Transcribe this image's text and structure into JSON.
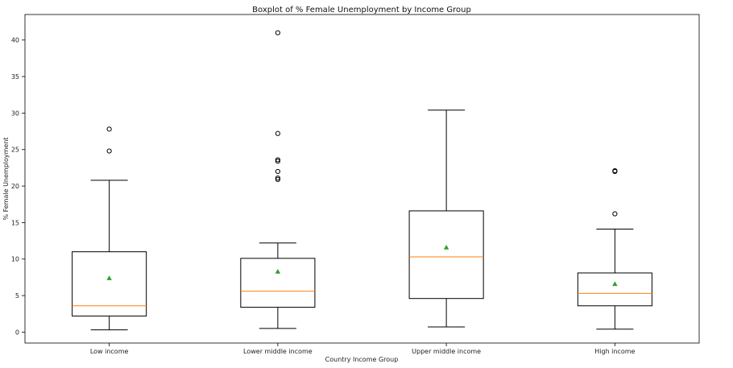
{
  "chart_data": {
    "type": "box",
    "title": "Boxplot of % Female Unemployment by Income  Group",
    "xlabel": "Country Income Group",
    "ylabel": "% Female Unemployment",
    "ylim": [
      -1.5,
      43.5
    ],
    "yticks": [
      0,
      5,
      10,
      15,
      20,
      25,
      30,
      35,
      40
    ],
    "grid": false,
    "categories": [
      "Low income",
      "Lower middle income",
      "Upper middle income",
      "High income"
    ],
    "boxes": [
      {
        "category": "Low income",
        "whisker_low": 0.3,
        "q1": 2.2,
        "median": 3.6,
        "q3": 11.0,
        "whisker_high": 20.8,
        "mean": 7.4,
        "outliers": [
          24.8,
          27.8
        ]
      },
      {
        "category": "Lower middle income",
        "whisker_low": 0.5,
        "q1": 3.4,
        "median": 5.6,
        "q3": 10.1,
        "whisker_high": 12.2,
        "mean": 8.3,
        "outliers": [
          20.9,
          21.1,
          22.0,
          23.4,
          23.6,
          27.2,
          41.0
        ]
      },
      {
        "category": "Upper middle income",
        "whisker_low": 0.7,
        "q1": 4.6,
        "median": 10.3,
        "q3": 16.6,
        "whisker_high": 30.4,
        "mean": 11.6,
        "outliers": []
      },
      {
        "category": "High income",
        "whisker_low": 0.4,
        "q1": 3.6,
        "median": 5.3,
        "q3": 8.1,
        "whisker_high": 14.1,
        "mean": 6.6,
        "outliers": [
          16.2,
          22.0,
          22.1
        ]
      }
    ],
    "colors": {
      "box": "#000000",
      "median": "#ff7f0e",
      "mean_marker": "#2ca02c",
      "outlier": "#000000"
    }
  }
}
